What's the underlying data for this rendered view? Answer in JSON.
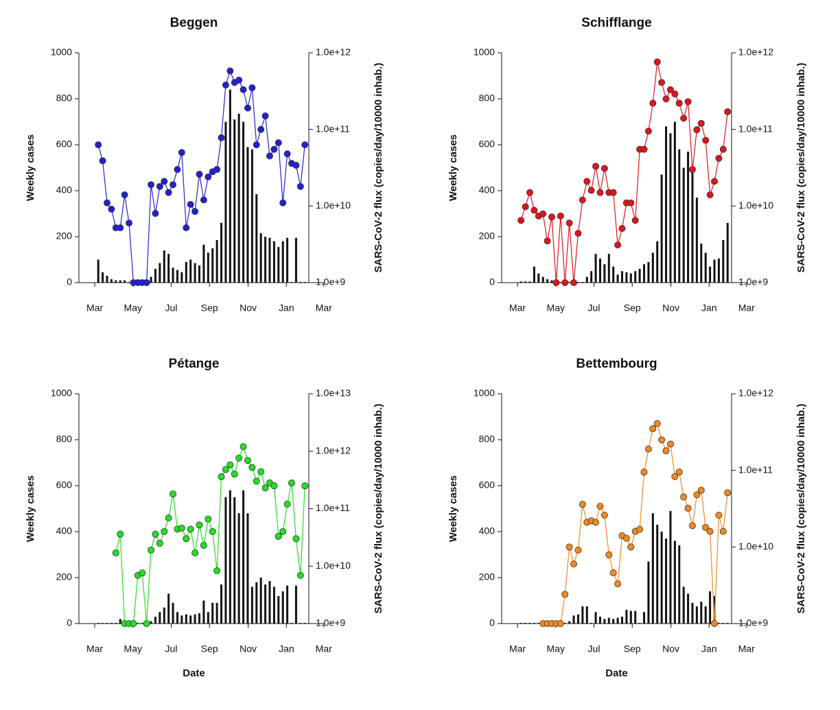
{
  "chart_data": [
    {
      "type": "combo",
      "title": "Beggen",
      "ylabel": "Weekly cases",
      "y2label": "SARS-CoV-2 flux (copies/day/10000 inhab.)",
      "x": [
        1,
        2,
        3,
        4,
        5,
        6,
        7,
        8,
        9,
        10,
        11,
        12,
        13,
        14,
        15,
        16,
        17,
        18,
        19,
        20,
        21,
        22,
        23,
        24,
        25,
        26,
        27,
        28,
        29,
        30,
        31,
        32,
        33,
        34,
        35,
        36,
        37,
        38,
        39,
        40,
        41,
        42,
        43,
        44,
        45,
        46,
        47,
        48
      ],
      "xlim": [
        -3.4,
        48.9
      ],
      "xticks": [
        {
          "value": 0.2,
          "label": "Mar"
        },
        {
          "value": 8.9,
          "label": "May"
        },
        {
          "value": 17.6,
          "label": "Jul"
        },
        {
          "value": 26.3,
          "label": "Sep"
        },
        {
          "value": 35.1,
          "label": "Nov"
        },
        {
          "value": 43.8,
          "label": "Jan"
        },
        {
          "value": 52.3,
          "label": "Mar"
        }
      ],
      "ylim": [
        0,
        1000
      ],
      "yticks": [
        0,
        200,
        400,
        600,
        800,
        1000
      ],
      "y2lim": [
        1000000000.0,
        1000000000000.0
      ],
      "y2_log": true,
      "y2ticks": [
        {
          "value": 1000000000.0,
          "label": "1.0e+9"
        },
        {
          "value": 10000000000.0,
          "label": "1.0e+10"
        },
        {
          "value": 100000000000.0,
          "label": "1.0e+11"
        },
        {
          "value": 1000000000000.0,
          "label": "1.0e+12"
        }
      ],
      "series": [
        {
          "color": "#111111",
          "values": [
            100,
            45,
            30,
            15,
            10,
            10,
            10,
            0,
            0,
            0,
            0,
            0,
            25,
            60,
            85,
            140,
            125,
            65,
            55,
            45,
            90,
            100,
            85,
            75,
            165,
            130,
            150,
            185,
            260,
            700,
            840,
            710,
            735,
            700,
            590,
            580,
            385,
            215,
            200,
            195,
            180,
            155,
            180,
            195,
            0,
            195,
            0,
            0
          ]
        },
        {
          "color": "#2222cc",
          "axis": "y2",
          "values": [
            63000000000.0,
            39000000000.0,
            11000000000.0,
            9100000000.0,
            5200000000.0,
            5200000000.0,
            14000000000.0,
            6000000000.0,
            1000000000.0,
            1000000000.0,
            1000000000.0,
            1000000000.0,
            19000000000.0,
            8000000000.0,
            18000000000.0,
            21000000000.0,
            15000000000.0,
            19000000000.0,
            30000000000.0,
            50000000000.0,
            5200000000.0,
            10500000000.0,
            8500000000.0,
            26000000000.0,
            12000000000.0,
            24000000000.0,
            28000000000.0,
            30000000000.0,
            78000000000.0,
            380000000000.0,
            580000000000.0,
            410000000000.0,
            440000000000.0,
            330000000000.0,
            190000000000.0,
            350000000000.0,
            63000000000.0,
            100000000000.0,
            150000000000.0,
            45000000000.0,
            55000000000.0,
            67000000000.0,
            11000000000.0,
            48000000000.0,
            36000000000.0,
            34000000000.0,
            18000000000.0,
            63000000000.0
          ]
        }
      ]
    },
    {
      "type": "combo",
      "title": "Schifflange",
      "ylabel": "Weekly cases",
      "y2label": "SARS-CoV-2 flux (copies/day/10000 inhab.)",
      "x": [
        1,
        2,
        3,
        4,
        5,
        6,
        7,
        8,
        9,
        10,
        11,
        12,
        13,
        14,
        15,
        16,
        17,
        18,
        19,
        20,
        21,
        22,
        23,
        24,
        25,
        26,
        27,
        28,
        29,
        30,
        31,
        32,
        33,
        34,
        35,
        36,
        37,
        38,
        39,
        40,
        41,
        42,
        43,
        44,
        45,
        46,
        47,
        48
      ],
      "xlim": [
        -3.4,
        48.9
      ],
      "xticks": [
        {
          "value": 0.2,
          "label": "Mar"
        },
        {
          "value": 8.9,
          "label": "May"
        },
        {
          "value": 17.6,
          "label": "Jul"
        },
        {
          "value": 26.3,
          "label": "Sep"
        },
        {
          "value": 35.1,
          "label": "Nov"
        },
        {
          "value": 43.8,
          "label": "Jan"
        },
        {
          "value": 52.3,
          "label": "Mar"
        }
      ],
      "ylim": [
        0,
        1000
      ],
      "yticks": [
        0,
        200,
        400,
        600,
        800,
        1000
      ],
      "y2lim": [
        1000000000.0,
        1000000000000.0
      ],
      "y2_log": true,
      "y2ticks": [
        {
          "value": 1000000000.0,
          "label": "1.0e+9"
        },
        {
          "value": 10000000000.0,
          "label": "1.0e+10"
        },
        {
          "value": 100000000000.0,
          "label": "1.0e+11"
        },
        {
          "value": 1000000000000.0,
          "label": "1.0e+12"
        }
      ],
      "series": [
        {
          "color": "#111111",
          "values": [
            5,
            5,
            5,
            70,
            40,
            25,
            15,
            10,
            5,
            0,
            0,
            0,
            0,
            0,
            0,
            25,
            50,
            125,
            105,
            80,
            125,
            70,
            35,
            50,
            45,
            40,
            50,
            60,
            80,
            90,
            130,
            180,
            470,
            680,
            650,
            700,
            580,
            500,
            570,
            480,
            370,
            170,
            130,
            70,
            100,
            105,
            185,
            260
          ]
        },
        {
          "color": "#e0141c",
          "axis": "y2",
          "values": [
            6500000000.0,
            9800000000.0,
            15000000000.0,
            8800000000.0,
            7400000000.0,
            7900000000.0,
            3500000000.0,
            7200000000.0,
            1000000000.0,
            7400000000.0,
            1000000000.0,
            6000000000.0,
            1000000000.0,
            4400000000.0,
            12000000000.0,
            21000000000.0,
            16000000000.0,
            33000000000.0,
            15000000000.0,
            31000000000.0,
            15000000000.0,
            15000000000.0,
            3100000000.0,
            5100000000.0,
            11000000000.0,
            11000000000.0,
            6500000000.0,
            55000000000.0,
            55000000000.0,
            95000000000.0,
            220000000000.0,
            760000000000.0,
            410000000000.0,
            250000000000.0,
            330000000000.0,
            290000000000.0,
            220000000000.0,
            140000000000.0,
            230000000000.0,
            30000000000.0,
            99000000000.0,
            120000000000.0,
            72000000000.0,
            14000000000.0,
            21000000000.0,
            42000000000.0,
            55000000000.0,
            170000000000.0
          ]
        }
      ]
    },
    {
      "type": "combo",
      "title": "Pétange",
      "ylabel": "Weekly cases",
      "y2label": "SARS-CoV-2 flux (copies/day/10000 inhab.)",
      "xlabel": "Date",
      "x": [
        1,
        2,
        3,
        4,
        5,
        6,
        7,
        8,
        9,
        10,
        11,
        12,
        13,
        14,
        15,
        16,
        17,
        18,
        19,
        20,
        21,
        22,
        23,
        24,
        25,
        26,
        27,
        28,
        29,
        30,
        31,
        32,
        33,
        34,
        35,
        36,
        37,
        38,
        39,
        40,
        41,
        42,
        43,
        44,
        45,
        46,
        47,
        48
      ],
      "xlim": [
        -3.4,
        48.9
      ],
      "xticks": [
        {
          "value": 0.2,
          "label": "Mar"
        },
        {
          "value": 8.9,
          "label": "May"
        },
        {
          "value": 17.6,
          "label": "Jul"
        },
        {
          "value": 26.3,
          "label": "Sep"
        },
        {
          "value": 35.1,
          "label": "Nov"
        },
        {
          "value": 43.8,
          "label": "Jan"
        },
        {
          "value": 52.3,
          "label": "Mar"
        }
      ],
      "ylim": [
        0,
        1000
      ],
      "yticks": [
        0,
        200,
        400,
        600,
        800,
        1000
      ],
      "y2lim": [
        1000000000.0,
        10000000000000.0
      ],
      "y2_log": true,
      "y2ticks": [
        {
          "value": 1000000000.0,
          "label": "1.0e+9"
        },
        {
          "value": 10000000000.0,
          "label": "1.0e+10"
        },
        {
          "value": 100000000000.0,
          "label": "1.0e+11"
        },
        {
          "value": 1000000000000.0,
          "label": "1.0e+12"
        },
        {
          "value": 10000000000000.0,
          "label": "1.0e+13"
        }
      ],
      "series": [
        {
          "color": "#111111",
          "values": [
            0,
            0,
            0,
            0,
            0,
            20,
            10,
            5,
            0,
            0,
            0,
            0,
            10,
            30,
            50,
            70,
            130,
            90,
            50,
            35,
            40,
            35,
            40,
            45,
            100,
            50,
            90,
            90,
            170,
            550,
            580,
            550,
            480,
            580,
            480,
            160,
            180,
            200,
            170,
            185,
            160,
            120,
            140,
            165,
            0,
            165,
            0,
            0
          ]
        },
        {
          "color": "#22e022",
          "axis": "y2",
          "values": [
            null,
            null,
            null,
            null,
            17000000000.0,
            36000000000.0,
            1000000000.0,
            1000000000.0,
            1000000000.0,
            6900000000.0,
            7600000000.0,
            1000000000.0,
            19000000000.0,
            36000000000.0,
            25000000000.0,
            40000000000.0,
            69000000000.0,
            180000000000.0,
            44000000000.0,
            46000000000.0,
            30000000000.0,
            44000000000.0,
            17000000000.0,
            52000000000.0,
            23000000000.0,
            66000000000.0,
            40000000000.0,
            8300000000.0,
            360000000000.0,
            480000000000.0,
            580000000000.0,
            400000000000.0,
            760000000000.0,
            1200000000000.0,
            690000000000.0,
            520000000000.0,
            300000000000.0,
            440000000000.0,
            230000000000.0,
            280000000000.0,
            250000000000.0,
            33000000000.0,
            40000000000.0,
            120000000000.0,
            280000000000.0,
            30000000000.0,
            6900000000.0,
            250000000000.0
          ]
        }
      ]
    },
    {
      "type": "combo",
      "title": "Bettembourg",
      "ylabel": "Weekly cases",
      "y2label": "SARS-CoV-2 flux (copies/day/10000 inhab.)",
      "xlabel": "Date",
      "x": [
        1,
        2,
        3,
        4,
        5,
        6,
        7,
        8,
        9,
        10,
        11,
        12,
        13,
        14,
        15,
        16,
        17,
        18,
        19,
        20,
        21,
        22,
        23,
        24,
        25,
        26,
        27,
        28,
        29,
        30,
        31,
        32,
        33,
        34,
        35,
        36,
        37,
        38,
        39,
        40,
        41,
        42,
        43,
        44,
        45,
        46,
        47,
        48
      ],
      "xlim": [
        -3.4,
        48.9
      ],
      "xticks": [
        {
          "value": 0.2,
          "label": "Mar"
        },
        {
          "value": 8.9,
          "label": "May"
        },
        {
          "value": 17.6,
          "label": "Jul"
        },
        {
          "value": 26.3,
          "label": "Sep"
        },
        {
          "value": 35.1,
          "label": "Nov"
        },
        {
          "value": 43.8,
          "label": "Jan"
        },
        {
          "value": 52.3,
          "label": "Mar"
        }
      ],
      "ylim": [
        0,
        1000
      ],
      "yticks": [
        0,
        200,
        400,
        600,
        800,
        1000
      ],
      "y2lim": [
        1000000000.0,
        1000000000000.0
      ],
      "y2_log": true,
      "y2ticks": [
        {
          "value": 1000000000.0,
          "label": "1.0e+9"
        },
        {
          "value": 10000000000.0,
          "label": "1.0e+10"
        },
        {
          "value": 100000000000.0,
          "label": "1.0e+11"
        },
        {
          "value": 1000000000000.0,
          "label": "1.0e+12"
        }
      ],
      "series": [
        {
          "color": "#111111",
          "values": [
            0,
            0,
            0,
            0,
            0,
            0,
            0,
            0,
            0,
            0,
            0,
            10,
            35,
            40,
            75,
            75,
            0,
            50,
            30,
            20,
            25,
            20,
            25,
            30,
            60,
            55,
            55,
            0,
            50,
            270,
            480,
            430,
            400,
            370,
            490,
            360,
            340,
            160,
            130,
            90,
            75,
            95,
            75,
            140,
            120,
            0,
            0,
            0
          ]
        },
        {
          "color": "#f08a1e",
          "axis": "y2",
          "values": [
            null,
            null,
            null,
            null,
            null,
            1000000000.0,
            1000000000.0,
            1000000000.0,
            1000000000.0,
            1000000000.0,
            2400000000.0,
            10000000000.0,
            6000000000.0,
            9100000000.0,
            36000000000.0,
            21000000000.0,
            22000000000.0,
            21000000000.0,
            34000000000.0,
            26000000000.0,
            7900000000.0,
            4600000000.0,
            3300000000.0,
            14000000000.0,
            13000000000.0,
            10000000000.0,
            16000000000.0,
            17000000000.0,
            95000000000.0,
            190000000000.0,
            350000000000.0,
            410000000000.0,
            250000000000.0,
            180000000000.0,
            220000000000.0,
            83000000000.0,
            95000000000.0,
            45000000000.0,
            32000000000.0,
            19000000000.0,
            48000000000.0,
            55000000000.0,
            18000000000.0,
            16000000000.0,
            1000000000.0,
            26000000000.0,
            16000000000.0,
            51000000000.0
          ]
        }
      ]
    }
  ]
}
